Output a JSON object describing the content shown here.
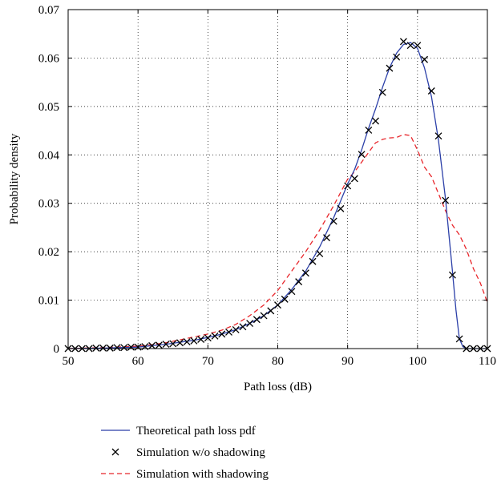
{
  "chart_data": {
    "type": "line",
    "title": "",
    "xlabel": "Path loss (dB)",
    "ylabel": "Probability density",
    "xlim": [
      50,
      110
    ],
    "ylim": [
      0,
      0.07
    ],
    "xticks": [
      50,
      60,
      70,
      80,
      90,
      100,
      110
    ],
    "yticks": [
      0,
      0.01,
      0.02,
      0.03,
      0.04,
      0.05,
      0.06,
      0.07
    ],
    "xtick_labels": [
      "50",
      "60",
      "70",
      "80",
      "90",
      "100",
      "110"
    ],
    "ytick_labels": [
      "0",
      "0.01",
      "0.02",
      "0.03",
      "0.04",
      "0.05",
      "0.06",
      "0.07"
    ],
    "grid": "dotted",
    "legend_position": "below",
    "series": [
      {
        "name": "Theoretical path loss pdf",
        "style": "solid",
        "color": "#2b3fa8",
        "x": [
          50,
          55,
          60,
          62,
          64,
          66,
          68,
          70,
          72,
          74,
          76,
          78,
          80,
          82,
          84,
          86,
          88,
          90,
          91,
          92,
          93,
          94,
          95,
          96,
          97,
          98,
          99,
          100,
          101,
          102,
          103,
          104,
          105,
          105.5,
          106,
          106.5,
          107,
          110
        ],
        "y": [
          0,
          0.0001,
          0.0003,
          0.0006,
          0.0009,
          0.0013,
          0.0017,
          0.0023,
          0.003,
          0.0039,
          0.0052,
          0.0068,
          0.009,
          0.0122,
          0.016,
          0.021,
          0.027,
          0.034,
          0.037,
          0.041,
          0.0455,
          0.0495,
          0.054,
          0.058,
          0.061,
          0.0628,
          0.0632,
          0.062,
          0.058,
          0.052,
          0.043,
          0.031,
          0.016,
          0.008,
          0.002,
          0.0004,
          0,
          0
        ]
      },
      {
        "name": "Simulation w/o shadowing",
        "style": "x-markers",
        "color": "#000000",
        "x": [
          50,
          51,
          52,
          53,
          54,
          55,
          56,
          57,
          58,
          59,
          60,
          61,
          62,
          63,
          64,
          65,
          66,
          67,
          68,
          69,
          70,
          71,
          72,
          73,
          74,
          75,
          76,
          77,
          78,
          79,
          80,
          81,
          82,
          83,
          84,
          85,
          86,
          87,
          88,
          89,
          90,
          91,
          92,
          93,
          94,
          95,
          96,
          97,
          98,
          99,
          100,
          101,
          102,
          103,
          104,
          105,
          106,
          107,
          108,
          109,
          110
        ],
        "y": [
          0,
          0,
          0,
          0,
          0.0001,
          0.0001,
          0.0001,
          0.0002,
          0.0002,
          0.0003,
          0.0003,
          0.0004,
          0.0006,
          0.0007,
          0.0009,
          0.001,
          0.0012,
          0.0014,
          0.0016,
          0.0019,
          0.0022,
          0.0026,
          0.003,
          0.0034,
          0.0039,
          0.0045,
          0.0052,
          0.006,
          0.0068,
          0.0078,
          0.009,
          0.0102,
          0.0118,
          0.0138,
          0.0156,
          0.018,
          0.0196,
          0.0229,
          0.0263,
          0.0289,
          0.0336,
          0.0351,
          0.0401,
          0.0451,
          0.047,
          0.0529,
          0.0579,
          0.0602,
          0.0634,
          0.0626,
          0.0626,
          0.0597,
          0.0532,
          0.0439,
          0.0306,
          0.0152,
          0.002,
          0,
          0,
          0,
          0
        ]
      },
      {
        "name": "Simulation with shadowing",
        "style": "dashed",
        "color": "#e8262b",
        "x": [
          50,
          55,
          60,
          62,
          64,
          66,
          68,
          70,
          72,
          74,
          76,
          78,
          80,
          82,
          84,
          86,
          88,
          90,
          91,
          92,
          93,
          94,
          95,
          96,
          97,
          98,
          99,
          100,
          101,
          102,
          103,
          104,
          105,
          106,
          107,
          108,
          109,
          110
        ],
        "y": [
          0,
          0.0002,
          0.0005,
          0.0008,
          0.0012,
          0.0018,
          0.0024,
          0.003,
          0.0038,
          0.005,
          0.0068,
          0.009,
          0.012,
          0.016,
          0.02,
          0.0245,
          0.0295,
          0.035,
          0.0365,
          0.0385,
          0.0405,
          0.0425,
          0.0432,
          0.0435,
          0.0436,
          0.0442,
          0.044,
          0.041,
          0.0375,
          0.0355,
          0.032,
          0.0285,
          0.0255,
          0.0235,
          0.0205,
          0.0165,
          0.0135,
          0.0095
        ]
      }
    ]
  }
}
